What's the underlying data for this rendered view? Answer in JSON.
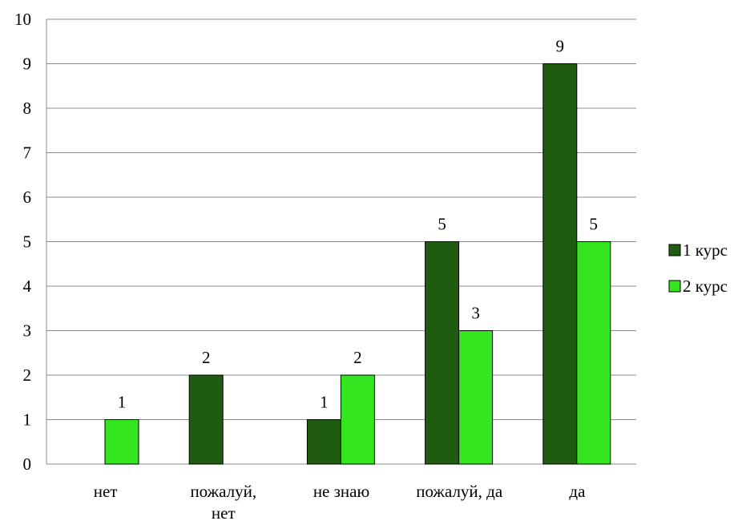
{
  "chart_data": {
    "type": "bar",
    "categories": [
      [
        "нет"
      ],
      [
        "пожалуй,",
        "нет"
      ],
      [
        "не знаю"
      ],
      [
        "пожалуй, да"
      ],
      [
        "да"
      ]
    ],
    "series": [
      {
        "name": "1 курс",
        "values": [
          null,
          2,
          1,
          5,
          9
        ],
        "color": "#1f5c0f"
      },
      {
        "name": "2 курс",
        "values": [
          1,
          null,
          2,
          3,
          5
        ],
        "color": "#33e61f"
      }
    ],
    "ylim": [
      0,
      10
    ],
    "yticks": [
      "0",
      "1",
      "2",
      "3",
      "4",
      "5",
      "6",
      "7",
      "8",
      "9",
      "10"
    ],
    "grid": true,
    "legend_position": "right"
  }
}
